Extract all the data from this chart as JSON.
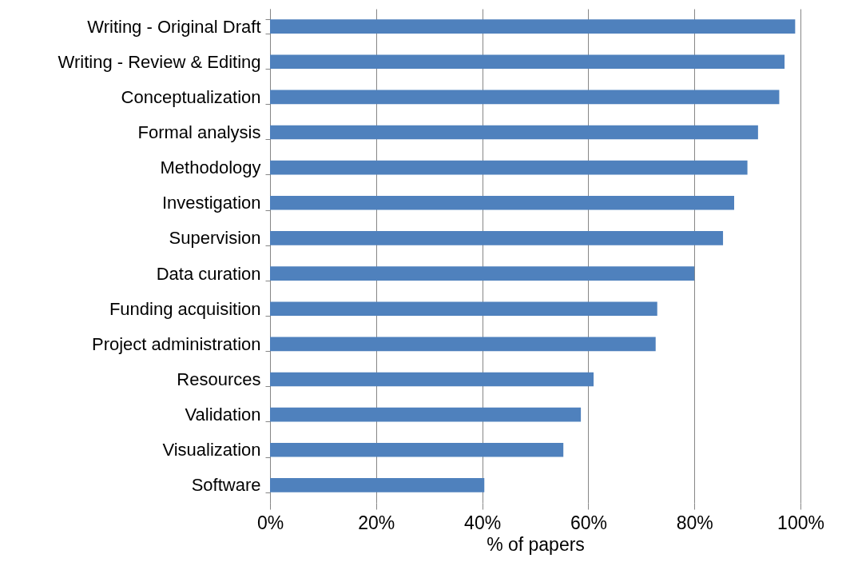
{
  "chart_data": {
    "type": "bar",
    "orientation": "horizontal",
    "xlabel": "% of papers",
    "categories": [
      "Writing - Original Draft",
      "Writing - Review & Editing",
      "Conceptualization",
      "Formal analysis",
      "Methodology",
      "Investigation",
      "Supervision",
      "Data curation",
      "Funding acquisition",
      "Project administration",
      "Resources",
      "Validation",
      "Visualization",
      "Software"
    ],
    "values": [
      99,
      97,
      96,
      92,
      90,
      87.5,
      85.4,
      80,
      73,
      72.7,
      61,
      58.6,
      55.3,
      40.4
    ],
    "color": "#4f81bd",
    "xlim": [
      0,
      100
    ],
    "xticks": [
      {
        "value": 0,
        "label": "0%"
      },
      {
        "value": 20,
        "label": "20%"
      },
      {
        "value": 40,
        "label": "40%"
      },
      {
        "value": 60,
        "label": "60%"
      },
      {
        "value": 80,
        "label": "80%"
      },
      {
        "value": 100,
        "label": "100%"
      }
    ],
    "grid": "x"
  }
}
